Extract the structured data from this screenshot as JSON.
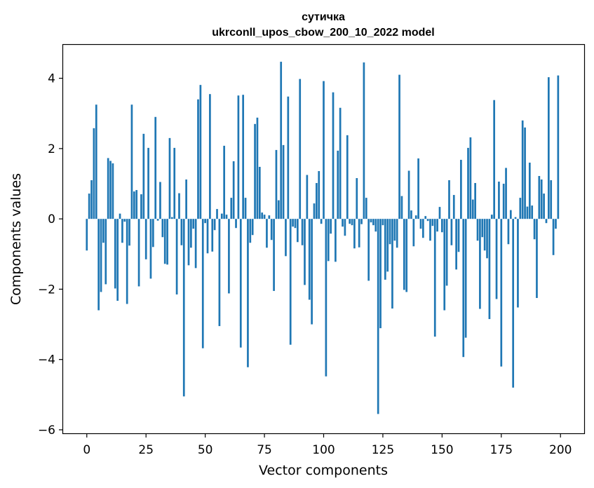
{
  "chart_data": {
    "type": "bar",
    "title": [
      "сутичка",
      "ukrconll_upos_cbow_200_10_2022 model"
    ],
    "xlabel": "Vector components",
    "ylabel": "Components values",
    "xlim": [
      -10,
      210
    ],
    "ylim": [
      -6.1,
      4.95
    ],
    "xticks": [
      0,
      25,
      50,
      75,
      100,
      125,
      150,
      175,
      200
    ],
    "yticks": [
      -6,
      -4,
      -2,
      0,
      2,
      4
    ],
    "ytick_labels": [
      "−6",
      "−4",
      "−2",
      "0",
      "2",
      "4"
    ],
    "bar_color": "#1f77b4",
    "bar_width": 0.8,
    "values": [
      -0.9,
      0.72,
      1.1,
      2.58,
      3.25,
      -2.6,
      -2.08,
      -0.68,
      -1.86,
      1.73,
      1.65,
      1.58,
      -1.98,
      -2.33,
      0.15,
      -0.68,
      -0.08,
      -2.42,
      -0.76,
      3.25,
      0.78,
      0.82,
      -1.92,
      0.7,
      2.42,
      -1.15,
      2.02,
      -1.7,
      -0.8,
      2.9,
      -0.05,
      1.05,
      -0.52,
      -1.28,
      -1.3,
      2.3,
      0.05,
      2.02,
      -2.15,
      0.73,
      -0.75,
      -5.05,
      1.12,
      -1.32,
      -0.82,
      -0.28,
      -1.4,
      3.4,
      3.81,
      -3.68,
      -0.12,
      -0.98,
      3.55,
      -0.93,
      -0.32,
      0.28,
      -3.05,
      0.15,
      2.08,
      0.12,
      -2.12,
      0.6,
      1.64,
      -0.26,
      3.51,
      -3.66,
      3.53,
      0.6,
      -4.22,
      -0.68,
      -0.46,
      2.7,
      2.88,
      1.48,
      0.18,
      0.12,
      -0.82,
      0.1,
      -0.6,
      -2.05,
      1.96,
      0.53,
      4.47,
      2.1,
      -1.06,
      3.48,
      -3.58,
      -0.22,
      -0.26,
      -0.66,
      3.98,
      -0.75,
      -1.88,
      1.25,
      -2.3,
      -3.0,
      0.44,
      1.02,
      1.36,
      -0.14,
      3.92,
      -4.48,
      -1.2,
      -0.42,
      3.6,
      -1.22,
      1.94,
      3.16,
      -0.22,
      -0.48,
      2.38,
      -0.14,
      -0.18,
      -0.84,
      1.16,
      -0.81,
      -0.15,
      4.45,
      0.6,
      -1.76,
      -0.1,
      -0.18,
      -0.36,
      -5.55,
      -3.11,
      -0.18,
      -1.73,
      -1.5,
      -0.72,
      -2.55,
      -0.62,
      -0.82,
      4.1,
      0.65,
      -2.02,
      -2.08,
      1.37,
      0.24,
      -0.78,
      0.1,
      1.72,
      -0.28,
      -0.54,
      0.08,
      -0.06,
      -0.62,
      -0.2,
      -3.35,
      -0.36,
      0.34,
      -0.38,
      -2.6,
      -1.9,
      1.1,
      -0.75,
      0.68,
      -1.44,
      -0.94,
      1.68,
      -3.93,
      -3.38,
      2.02,
      2.32,
      0.55,
      1.02,
      -0.62,
      -2.56,
      -0.52,
      -0.9,
      -1.12,
      -2.85,
      0.12,
      3.38,
      -2.28,
      1.06,
      -4.2,
      1.0,
      1.45,
      -0.72,
      0.25,
      -4.8,
      0.05,
      -2.52,
      0.6,
      2.8,
      2.6,
      0.35,
      1.6,
      0.38,
      -0.58,
      -2.25,
      1.22,
      1.12,
      0.72,
      -0.12,
      4.03,
      1.1,
      -1.03,
      -0.28,
      4.08
    ]
  }
}
